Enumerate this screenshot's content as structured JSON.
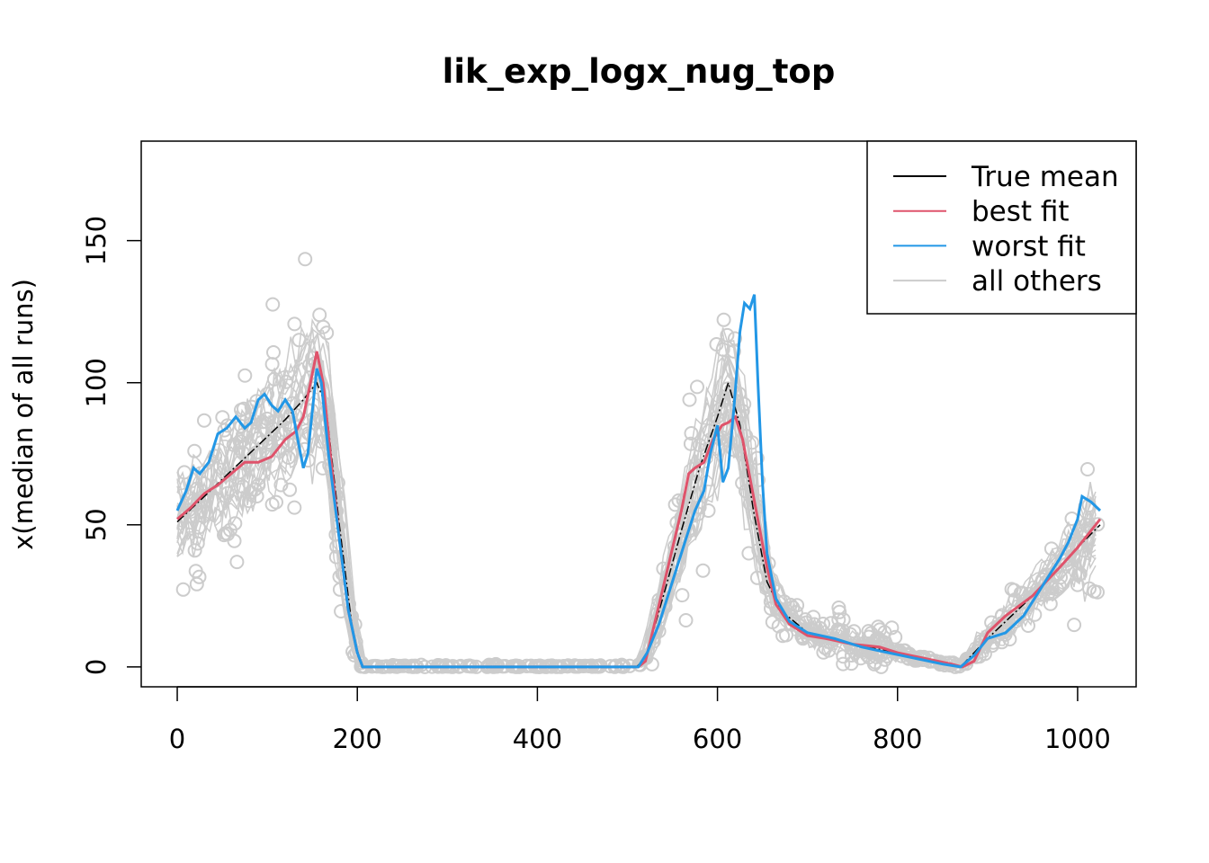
{
  "chart_data": {
    "type": "line",
    "title": "lik_exp_logx_nug_top",
    "xlabel": "",
    "ylabel": "x(median of all runs)",
    "xlim": [
      -40,
      1065
    ],
    "ylim": [
      -7,
      185
    ],
    "x_ticks": [
      0,
      200,
      400,
      600,
      800,
      1000
    ],
    "y_ticks": [
      0,
      50,
      100,
      150
    ],
    "grid": false,
    "legend": {
      "position": "top-right",
      "entries": [
        {
          "label": "True mean",
          "color": "#000000"
        },
        {
          "label": "best fit",
          "color": "#DF536B"
        },
        {
          "label": "worst fit",
          "color": "#2297E6"
        },
        {
          "label": "all others",
          "color": "#CCCCCC"
        }
      ]
    },
    "series": [
      {
        "name": "True mean",
        "color": "#000000",
        "x": [
          0,
          20,
          40,
          60,
          80,
          100,
          120,
          140,
          150,
          155,
          165,
          180,
          195,
          205,
          300,
          400,
          510,
          520,
          540,
          560,
          580,
          600,
          612,
          625,
          640,
          655,
          670,
          700,
          750,
          800,
          850,
          870,
          900,
          950,
          1000,
          1025
        ],
        "y": [
          51,
          57,
          63,
          69,
          75,
          81,
          87,
          94,
          98,
          100,
          92,
          50,
          12,
          0,
          0,
          0,
          0,
          3,
          25,
          48,
          70,
          88,
          100,
          85,
          55,
          30,
          20,
          12,
          8,
          5,
          1,
          0,
          10,
          25,
          42,
          50
        ]
      },
      {
        "name": "best fit",
        "color": "#DF536B",
        "x": [
          0,
          15,
          30,
          45,
          60,
          75,
          90,
          105,
          120,
          132,
          140,
          148,
          155,
          162,
          170,
          180,
          190,
          200,
          206,
          300,
          400,
          512,
          520,
          530,
          545,
          560,
          568,
          575,
          585,
          595,
          605,
          612,
          620,
          628,
          640,
          655,
          665,
          680,
          700,
          720,
          750,
          780,
          800,
          830,
          860,
          872,
          885,
          900,
          920,
          950,
          980,
          1000,
          1025
        ],
        "y": [
          52,
          56,
          61,
          64,
          68,
          72,
          72,
          74,
          80,
          83,
          88,
          100,
          111,
          100,
          75,
          45,
          20,
          5,
          0,
          0,
          0,
          0,
          2,
          15,
          35,
          55,
          68,
          70,
          72,
          80,
          85,
          86,
          88,
          80,
          60,
          35,
          22,
          15,
          11,
          10,
          8,
          7,
          5,
          3,
          1,
          0,
          2,
          12,
          18,
          25,
          35,
          42,
          52
        ]
      },
      {
        "name": "worst fit",
        "color": "#2297E6",
        "x": [
          0,
          10,
          18,
          25,
          35,
          45,
          55,
          65,
          75,
          82,
          90,
          97,
          105,
          112,
          120,
          128,
          135,
          140,
          145,
          150,
          155,
          160,
          168,
          180,
          190,
          200,
          206,
          300,
          400,
          512,
          522,
          535,
          545,
          555,
          565,
          575,
          585,
          592,
          600,
          606,
          612,
          618,
          625,
          630,
          636,
          641,
          645,
          650,
          655,
          665,
          680,
          700,
          730,
          760,
          790,
          820,
          850,
          870,
          885,
          900,
          920,
          940,
          960,
          980,
          990,
          1000,
          1005,
          1015,
          1025
        ],
        "y": [
          55,
          62,
          70,
          68,
          72,
          82,
          84,
          88,
          84,
          86,
          94,
          96,
          92,
          90,
          94,
          90,
          78,
          70,
          75,
          90,
          105,
          100,
          75,
          45,
          20,
          5,
          0,
          0,
          0,
          0,
          5,
          15,
          25,
          35,
          45,
          55,
          62,
          75,
          85,
          65,
          70,
          90,
          118,
          128,
          126,
          131,
          100,
          65,
          40,
          24,
          16,
          12,
          10,
          7,
          5,
          3,
          1,
          0,
          4,
          10,
          12,
          18,
          28,
          38,
          44,
          52,
          60,
          58,
          55
        ]
      }
    ]
  }
}
